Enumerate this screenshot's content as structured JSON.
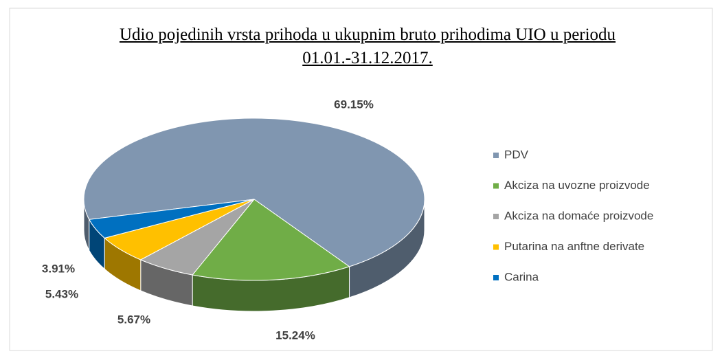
{
  "chart_data": {
    "type": "pie",
    "title": "Udio pojedinih vrsta prihoda u ukupnim bruto prihodima UIO u periodu 01.01.-31.12.2017.",
    "categories": [
      "PDV",
      "Akciza na uvozne proizvode",
      "Akciza na domaće proizvode",
      "Putarina na anftne derivate",
      "Carina"
    ],
    "values": [
      69.15,
      15.24,
      5.67,
      5.43,
      3.91
    ],
    "value_labels": [
      "69.15%",
      "15.24%",
      "5.67%",
      "5.43%",
      "3.91%"
    ],
    "colors": [
      "#8096b0",
      "#70ad47",
      "#a5a5a5",
      "#ffc000",
      "#0070c0"
    ],
    "legend": "right"
  }
}
